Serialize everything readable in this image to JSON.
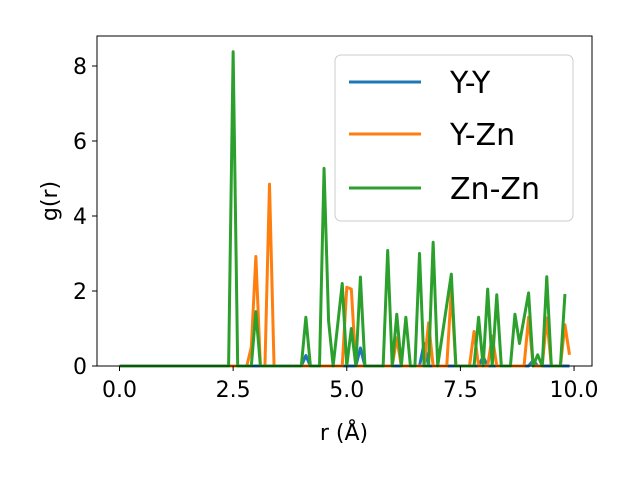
{
  "chart_data": {
    "type": "line",
    "title": "",
    "xlabel": "r (Å)",
    "ylabel": "g(r)",
    "xlim": [
      -0.495,
      10.395
    ],
    "ylim": [
      0,
      8.8
    ],
    "xticks": [
      0.0,
      2.5,
      5.0,
      7.5,
      10.0
    ],
    "xtick_labels": [
      "0.0",
      "2.5",
      "5.0",
      "7.5",
      "10.0"
    ],
    "yticks": [
      0,
      2,
      4,
      6,
      8
    ],
    "ytick_labels": [
      "0",
      "2",
      "4",
      "6",
      "8"
    ],
    "grid": false,
    "legend_position": "top-right",
    "series": [
      {
        "name": "Y-Y",
        "color": "#1f77b4",
        "points": [
          [
            0.0,
            0.0
          ],
          [
            4.0,
            0.0
          ],
          [
            4.1,
            0.28
          ],
          [
            4.2,
            0.0
          ],
          [
            5.2,
            0.0
          ],
          [
            5.3,
            0.48
          ],
          [
            5.4,
            0.0
          ],
          [
            6.6,
            0.0
          ],
          [
            6.7,
            0.6
          ],
          [
            6.8,
            0.0
          ],
          [
            7.9,
            0.0
          ],
          [
            8.0,
            0.25
          ],
          [
            8.1,
            0.0
          ],
          [
            9.0,
            0.0
          ],
          [
            9.1,
            0.15
          ],
          [
            9.2,
            0.0
          ],
          [
            9.9,
            0.0
          ]
        ]
      },
      {
        "name": "Y-Zn",
        "color": "#ff7f0e",
        "points": [
          [
            0.0,
            0.0
          ],
          [
            2.8,
            0.0
          ],
          [
            2.9,
            0.5
          ],
          [
            3.0,
            2.92
          ],
          [
            3.1,
            0.0
          ],
          [
            3.2,
            0.0
          ],
          [
            3.3,
            4.85
          ],
          [
            3.4,
            0.0
          ],
          [
            4.9,
            0.0
          ],
          [
            5.0,
            2.1
          ],
          [
            5.1,
            2.05
          ],
          [
            5.2,
            0.0
          ],
          [
            6.0,
            0.0
          ],
          [
            6.1,
            0.75
          ],
          [
            6.2,
            0.0
          ],
          [
            6.7,
            0.0
          ],
          [
            6.8,
            1.15
          ],
          [
            6.9,
            0.0
          ],
          [
            7.2,
            0.0
          ],
          [
            7.3,
            2.02
          ],
          [
            7.4,
            0.0
          ],
          [
            7.7,
            0.0
          ],
          [
            7.8,
            0.92
          ],
          [
            7.9,
            0.0
          ],
          [
            8.1,
            0.0
          ],
          [
            8.2,
            0.8
          ],
          [
            8.3,
            0.0
          ],
          [
            8.9,
            0.0
          ],
          [
            9.0,
            1.3
          ],
          [
            9.1,
            0.0
          ],
          [
            9.3,
            0.0
          ],
          [
            9.4,
            1.28
          ],
          [
            9.5,
            0.0
          ],
          [
            9.7,
            0.0
          ],
          [
            9.8,
            1.1
          ],
          [
            9.9,
            0.3
          ]
        ]
      },
      {
        "name": "Zn-Zn",
        "color": "#2ca02c",
        "points": [
          [
            0.0,
            0.0
          ],
          [
            2.4,
            0.0
          ],
          [
            2.5,
            8.38
          ],
          [
            2.6,
            0.0
          ],
          [
            2.9,
            0.0
          ],
          [
            3.0,
            1.45
          ],
          [
            3.1,
            0.0
          ],
          [
            4.0,
            0.0
          ],
          [
            4.1,
            1.3
          ],
          [
            4.2,
            0.0
          ],
          [
            4.4,
            0.0
          ],
          [
            4.5,
            5.27
          ],
          [
            4.6,
            1.2
          ],
          [
            4.7,
            0.0
          ],
          [
            4.9,
            2.2
          ],
          [
            5.0,
            0.0
          ],
          [
            5.1,
            1.0
          ],
          [
            5.2,
            0.0
          ],
          [
            5.3,
            2.37
          ],
          [
            5.4,
            0.0
          ],
          [
            5.8,
            0.0
          ],
          [
            5.9,
            3.08
          ],
          [
            6.0,
            0.0
          ],
          [
            6.1,
            1.38
          ],
          [
            6.2,
            0.0
          ],
          [
            6.3,
            1.3
          ],
          [
            6.4,
            0.0
          ],
          [
            6.5,
            0.0
          ],
          [
            6.6,
            3.0
          ],
          [
            6.7,
            0.0
          ],
          [
            6.8,
            0.0
          ],
          [
            6.9,
            3.3
          ],
          [
            7.0,
            0.0
          ],
          [
            7.3,
            2.45
          ],
          [
            7.4,
            0.0
          ],
          [
            7.8,
            0.0
          ],
          [
            7.9,
            1.3
          ],
          [
            8.0,
            0.0
          ],
          [
            8.1,
            2.05
          ],
          [
            8.2,
            0.0
          ],
          [
            8.3,
            1.9
          ],
          [
            8.4,
            0.0
          ],
          [
            8.6,
            0.0
          ],
          [
            8.7,
            1.38
          ],
          [
            8.8,
            0.6
          ],
          [
            9.0,
            1.95
          ],
          [
            9.1,
            0.0
          ],
          [
            9.2,
            0.3
          ],
          [
            9.3,
            0.0
          ],
          [
            9.4,
            2.38
          ],
          [
            9.5,
            0.0
          ],
          [
            9.7,
            0.0
          ],
          [
            9.8,
            1.92
          ]
        ]
      }
    ]
  }
}
